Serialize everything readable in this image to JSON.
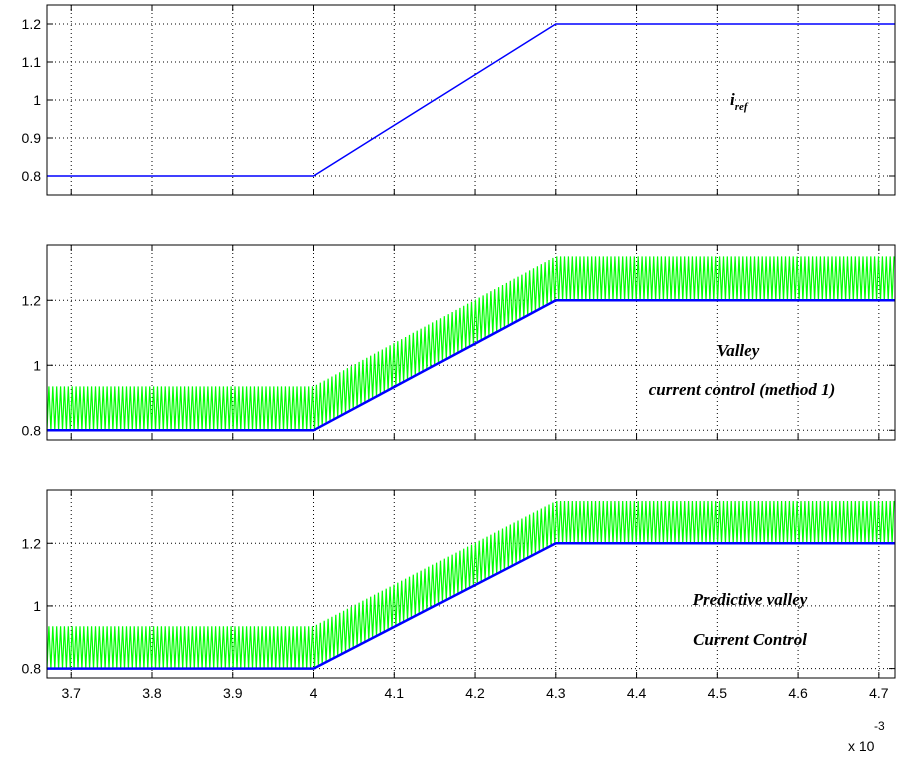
{
  "x_tick_labels": [
    "3.7",
    "3.8",
    "3.9",
    "4",
    "4.1",
    "4.2",
    "4.3",
    "4.4",
    "4.5",
    "4.6",
    "4.7"
  ],
  "x_exponent": {
    "base": "x 10",
    "power": "-3"
  },
  "colors": {
    "reference": "#0000ff",
    "current": "#00ff00",
    "grid": "#000000"
  },
  "chart_data": [
    {
      "type": "line",
      "title": "",
      "xlabel": "",
      "ylabel": "",
      "xlim": [
        3.67,
        4.72
      ],
      "ylim": [
        0.75,
        1.25
      ],
      "grid": true,
      "yticks": [
        "0.8",
        "0.9",
        "1",
        "1.1",
        "1.2"
      ],
      "annotation": {
        "main": "i",
        "sub": "ref"
      },
      "series": [
        {
          "values": [
            [
              3.67,
              0.8
            ],
            [
              4.0,
              0.8
            ],
            [
              4.3,
              1.2
            ],
            [
              4.72,
              1.2
            ]
          ]
        }
      ]
    },
    {
      "type": "line",
      "title": "",
      "xlabel": "",
      "ylabel": "",
      "xlim": [
        3.67,
        4.72
      ],
      "ylim": [
        0.77,
        1.37
      ],
      "grid": true,
      "yticks": [
        "0.8",
        "1",
        "1.2"
      ],
      "annotation": {
        "line1": "Valley",
        "line2": "current control (method 1)"
      },
      "series": [
        {
          "values": [
            [
              3.67,
              0.8
            ],
            [
              4.0,
              0.8
            ],
            [
              4.3,
              1.2
            ],
            [
              4.72,
              1.2
            ]
          ]
        },
        {
          "ripple": {
            "valley_offset": 0.0,
            "peak_offset": 0.135,
            "period": 0.0048
          }
        }
      ]
    },
    {
      "type": "line",
      "title": "",
      "xlabel": "",
      "ylabel": "",
      "xlim": [
        3.67,
        4.72
      ],
      "ylim": [
        0.77,
        1.37
      ],
      "grid": true,
      "yticks": [
        "0.8",
        "1",
        "1.2"
      ],
      "annotation": {
        "line1": "Predictive valley",
        "line2": "Current Control"
      },
      "series": [
        {
          "values": [
            [
              3.67,
              0.8
            ],
            [
              4.0,
              0.8
            ],
            [
              4.3,
              1.2
            ],
            [
              4.72,
              1.2
            ]
          ]
        },
        {
          "ripple": {
            "valley_offset": 0.0,
            "peak_offset": 0.135,
            "period": 0.0048
          }
        }
      ]
    }
  ]
}
